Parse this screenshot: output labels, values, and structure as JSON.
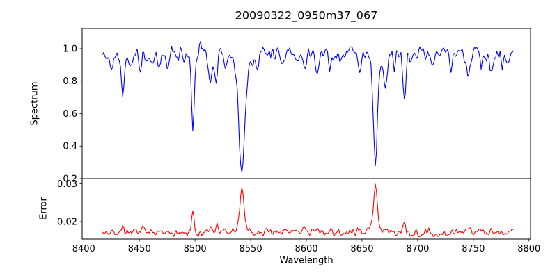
{
  "figure": {
    "title": "20090322_0950m37_067",
    "background_color": "#ffffff",
    "spine_color": "#000000"
  },
  "chart_data": {
    "type": "line",
    "title": "20090322_0950m37_067",
    "xlabel": "Wavelength",
    "xlim": [
      8398.6,
      8801.4
    ],
    "xticks": [
      8400,
      8450,
      8500,
      8550,
      8600,
      8650,
      8700,
      8750,
      8800
    ],
    "xtick_labels": [
      "8400",
      "8450",
      "8500",
      "8550",
      "8600",
      "8650",
      "8700",
      "8750",
      "8800"
    ],
    "x_start": 8417,
    "x_end": 8786,
    "x_step": 1,
    "grid": false,
    "legend": "none",
    "panels": [
      {
        "name": "spectrum",
        "ylabel": "Spectrum",
        "color": "#0000ff",
        "ylim": [
          0.2,
          1.124
        ],
        "ytick_values": [
          0.2,
          0.4,
          0.6,
          0.8,
          1.0
        ],
        "ytick_labels": [
          "0.2",
          "0.4",
          "0.6",
          "0.8",
          "1.0"
        ],
        "continuum": 0.965,
        "noise_amplitude": 0.055,
        "seed": 20090322,
        "absorption_lines": [
          {
            "center": 8425.0,
            "depth": 0.08,
            "sigma": 1.2
          },
          {
            "center": 8435.0,
            "depth": 0.24,
            "sigma": 1.3
          },
          {
            "center": 8442.0,
            "depth": 0.06,
            "sigma": 1.0
          },
          {
            "center": 8451.0,
            "depth": 0.1,
            "sigma": 1.2
          },
          {
            "center": 8468.0,
            "depth": 0.12,
            "sigma": 1.5
          },
          {
            "center": 8476.0,
            "depth": 0.07,
            "sigma": 1.0
          },
          {
            "center": 8498.0,
            "depth": 0.385,
            "sigma": 1.1
          },
          {
            "center": 8498.0,
            "depth": 0.08,
            "sigma": 3.5
          },
          {
            "center": 8514.0,
            "depth": 0.18,
            "sigma": 1.3
          },
          {
            "center": 8519.0,
            "depth": 0.16,
            "sigma": 1.2
          },
          {
            "center": 8527.0,
            "depth": 0.07,
            "sigma": 1.0
          },
          {
            "center": 8542.1,
            "depth": 0.62,
            "sigma": 2.5
          },
          {
            "center": 8542.1,
            "depth": 0.11,
            "sigma": 7.0
          },
          {
            "center": 8556.0,
            "depth": 0.06,
            "sigma": 1.0
          },
          {
            "center": 8579.0,
            "depth": 0.09,
            "sigma": 1.3
          },
          {
            "center": 8598.0,
            "depth": 0.08,
            "sigma": 1.2
          },
          {
            "center": 8610.0,
            "depth": 0.1,
            "sigma": 1.2
          },
          {
            "center": 8621.0,
            "depth": 0.09,
            "sigma": 1.2
          },
          {
            "center": 8634.0,
            "depth": 0.06,
            "sigma": 1.0
          },
          {
            "center": 8648.0,
            "depth": 0.1,
            "sigma": 1.3
          },
          {
            "center": 8662.1,
            "depth": 0.6,
            "sigma": 1.7
          },
          {
            "center": 8662.1,
            "depth": 0.1,
            "sigma": 5.0
          },
          {
            "center": 8671.0,
            "depth": 0.2,
            "sigma": 1.4
          },
          {
            "center": 8679.0,
            "depth": 0.08,
            "sigma": 1.0
          },
          {
            "center": 8688.0,
            "depth": 0.26,
            "sigma": 1.4
          },
          {
            "center": 8713.0,
            "depth": 0.08,
            "sigma": 1.2
          },
          {
            "center": 8730.0,
            "depth": 0.07,
            "sigma": 1.0
          },
          {
            "center": 8746.0,
            "depth": 0.12,
            "sigma": 1.3
          },
          {
            "center": 8757.0,
            "depth": 0.07,
            "sigma": 1.0
          },
          {
            "center": 8766.0,
            "depth": 0.12,
            "sigma": 1.3
          },
          {
            "center": 8776.0,
            "depth": 0.08,
            "sigma": 1.0
          }
        ],
        "emission_spikes": [
          {
            "center": 8505.0,
            "height": 0.085,
            "sigma": 0.8
          },
          {
            "center": 8525.0,
            "height": 0.045,
            "sigma": 0.7
          },
          {
            "center": 8641.0,
            "height": 0.04,
            "sigma": 0.7
          }
        ]
      },
      {
        "name": "error",
        "ylabel": "Error",
        "color": "#ff0000",
        "ylim": [
          0.0154,
          0.0314
        ],
        "ytick_values": [
          0.02,
          0.03
        ],
        "ytick_labels": [
          "0.02",
          "0.03"
        ],
        "baseline": 0.0172,
        "noise_amplitude": 0.0012,
        "seed": 950,
        "peaks": [
          {
            "center": 8435.0,
            "height": 0.0018,
            "sigma": 1.4
          },
          {
            "center": 8452.0,
            "height": 0.0008,
            "sigma": 1.2
          },
          {
            "center": 8468.0,
            "height": 0.0011,
            "sigma": 1.4
          },
          {
            "center": 8498.0,
            "height": 0.006,
            "sigma": 1.1
          },
          {
            "center": 8514.0,
            "height": 0.0013,
            "sigma": 1.2
          },
          {
            "center": 8520.0,
            "height": 0.0015,
            "sigma": 1.2
          },
          {
            "center": 8527.0,
            "height": 0.0012,
            "sigma": 1.1
          },
          {
            "center": 8542.1,
            "height": 0.01,
            "sigma": 1.8
          },
          {
            "center": 8542.1,
            "height": 0.0016,
            "sigma": 5.0
          },
          {
            "center": 8579.0,
            "height": 0.0006,
            "sigma": 1.1
          },
          {
            "center": 8598.0,
            "height": 0.0006,
            "sigma": 1.1
          },
          {
            "center": 8610.0,
            "height": 0.0008,
            "sigma": 1.1
          },
          {
            "center": 8621.0,
            "height": 0.0007,
            "sigma": 1.1
          },
          {
            "center": 8648.0,
            "height": 0.0008,
            "sigma": 1.1
          },
          {
            "center": 8662.1,
            "height": 0.0118,
            "sigma": 1.5
          },
          {
            "center": 8662.1,
            "height": 0.0014,
            "sigma": 5.0
          },
          {
            "center": 8671.0,
            "height": 0.0014,
            "sigma": 1.2
          },
          {
            "center": 8688.0,
            "height": 0.003,
            "sigma": 1.3
          },
          {
            "center": 8746.0,
            "height": 0.0008,
            "sigma": 1.2
          },
          {
            "center": 8766.0,
            "height": 0.0008,
            "sigma": 1.2
          }
        ]
      }
    ]
  }
}
